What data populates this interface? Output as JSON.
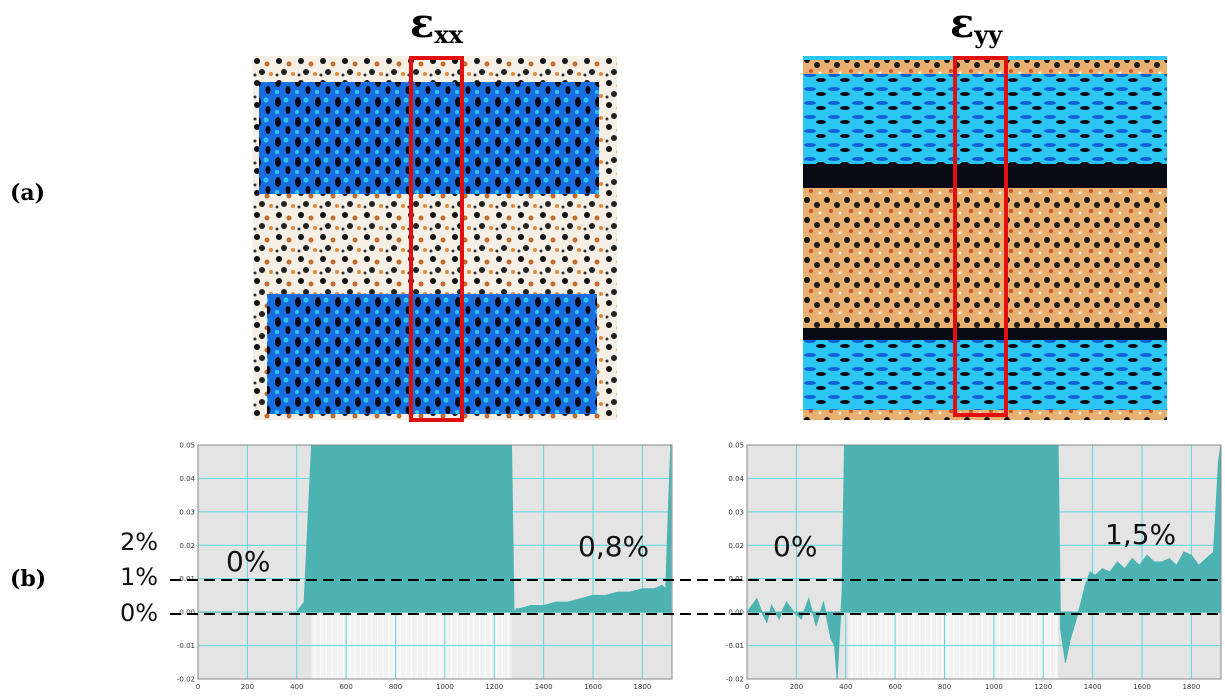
{
  "figure": {
    "label_a": "(a)",
    "label_b": "(b)",
    "panels": [
      {
        "symbol": "ε",
        "subscript": "xx"
      },
      {
        "symbol": "ε",
        "subscript": "yy"
      }
    ],
    "ref_labels": [
      "2%",
      "1%",
      "0%"
    ]
  },
  "colors": {
    "plot_bg": "#e4e4e4",
    "grid": "#5cd6dc",
    "fill": "#4cb2b2",
    "light_fill": "#c7e8ea",
    "dim_fill": "#f2f2f2",
    "box": "#e01010"
  },
  "chart_data": [
    {
      "type": "area",
      "x": [
        0,
        50,
        100,
        150,
        200,
        250,
        300,
        350,
        400,
        430,
        460,
        1270,
        1280,
        1290,
        1300,
        1350,
        1400,
        1450,
        1500,
        1550,
        1600,
        1650,
        1700,
        1750,
        1800,
        1850,
        1880,
        1895,
        1905,
        1915
      ],
      "y": [
        0,
        0,
        0,
        0,
        0,
        0,
        0,
        0,
        0,
        0.003,
        0.05,
        0.05,
        0.0,
        0.001,
        0.001,
        0.002,
        0.002,
        0.003,
        0.003,
        0.004,
        0.005,
        0.005,
        0.006,
        0.006,
        0.007,
        0.007,
        0.008,
        0.007,
        0.03,
        0.05
      ],
      "saturated_range": [
        460,
        1270
      ],
      "annotations": [
        "0%",
        "0,8%"
      ],
      "xlim": [
        0,
        1920
      ],
      "ylim": [
        -0.02,
        0.05
      ],
      "xticks": [
        0,
        200,
        400,
        600,
        800,
        1000,
        1200,
        1400,
        1600,
        1800
      ],
      "yticks": [
        -0.02,
        -0.01,
        0.0,
        0.01,
        0.02,
        0.03,
        0.04,
        0.05
      ],
      "ytick_labels": [
        "-0.02",
        "-0.01",
        "0.00",
        "0.01",
        "0.02",
        "0.03",
        "0.04",
        "0.05"
      ],
      "grid": true
    },
    {
      "type": "area",
      "x": [
        0,
        20,
        40,
        60,
        80,
        100,
        130,
        160,
        190,
        220,
        250,
        280,
        310,
        340,
        355,
        365,
        375,
        385,
        395,
        400,
        410,
        1260,
        1270,
        1290,
        1310,
        1330,
        1350,
        1370,
        1390,
        1410,
        1440,
        1470,
        1500,
        1530,
        1560,
        1590,
        1620,
        1650,
        1680,
        1710,
        1740,
        1770,
        1800,
        1830,
        1860,
        1890,
        1910,
        1920
      ],
      "y": [
        0.0,
        0.002,
        0.004,
        0.0,
        -0.003,
        0.002,
        -0.002,
        0.003,
        0.0,
        -0.002,
        0.004,
        -0.004,
        0.003,
        -0.008,
        -0.01,
        -0.02,
        -0.006,
        0.005,
        0.05,
        0.05,
        0.05,
        0.05,
        -0.005,
        -0.015,
        -0.008,
        -0.003,
        0.002,
        0.008,
        0.012,
        0.011,
        0.013,
        0.012,
        0.015,
        0.013,
        0.016,
        0.014,
        0.017,
        0.015,
        0.015,
        0.016,
        0.014,
        0.018,
        0.017,
        0.014,
        0.016,
        0.018,
        0.045,
        0.05
      ],
      "saturated_range": [
        410,
        1260
      ],
      "annotations": [
        "0%",
        "1,5%"
      ],
      "xlim": [
        0,
        1920
      ],
      "ylim": [
        -0.02,
        0.05
      ],
      "xticks": [
        0,
        200,
        400,
        600,
        800,
        1000,
        1200,
        1400,
        1600,
        1800
      ],
      "yticks": [
        -0.02,
        -0.01,
        0.0,
        0.01,
        0.02,
        0.03,
        0.04,
        0.05
      ],
      "ytick_labels": [
        "-0.02",
        "-0.01",
        "0.00",
        "0.01",
        "0.02",
        "0.03",
        "0.04",
        "0.05"
      ],
      "grid": true
    }
  ]
}
